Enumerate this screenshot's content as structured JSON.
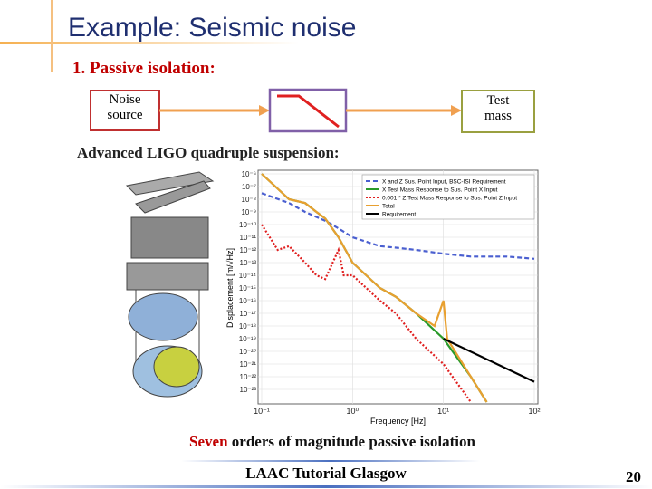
{
  "header": {
    "title": "Example: Seismic noise"
  },
  "section": "1. Passive isolation:",
  "diagram": {
    "nodes": [
      {
        "label": "Noise source"
      },
      {
        "label": "Test mass"
      }
    ]
  },
  "subtitle": "Advanced LIGO quadruple suspension:",
  "plot": {
    "type": "line",
    "x_label": "Frequency [Hz]",
    "y_label": "Displacement [m/√Hz]",
    "log_x": true,
    "log_y": true,
    "xlim": [
      0.1,
      100
    ],
    "ylim": [
      1e-24,
      1e-06
    ],
    "xticks": [
      {
        "value": 0.1,
        "label": "10⁻¹"
      },
      {
        "value": 1,
        "label": "10⁰"
      },
      {
        "value": 10,
        "label": "10¹"
      },
      {
        "value": 100,
        "label": "10²"
      }
    ],
    "yticks": [
      {
        "value": 1e-06,
        "label": "10⁻⁶"
      },
      {
        "value": 1e-07,
        "label": "10⁻⁷"
      },
      {
        "value": 1e-08,
        "label": "10⁻⁸"
      },
      {
        "value": 1e-09,
        "label": "10⁻⁹"
      },
      {
        "value": 1e-10,
        "label": "10⁻¹⁰"
      },
      {
        "value": 1e-11,
        "label": "10⁻¹¹"
      },
      {
        "value": 1e-12,
        "label": "10⁻¹²"
      },
      {
        "value": 1e-13,
        "label": "10⁻¹³"
      },
      {
        "value": 1e-14,
        "label": "10⁻¹⁴"
      },
      {
        "value": 1e-15,
        "label": "10⁻¹⁵"
      },
      {
        "value": 1e-16,
        "label": "10⁻¹⁶"
      },
      {
        "value": 1e-17,
        "label": "10⁻¹⁷"
      },
      {
        "value": 1e-18,
        "label": "10⁻¹⁸"
      },
      {
        "value": 1e-19,
        "label": "10⁻¹⁹"
      },
      {
        "value": 1e-20,
        "label": "10⁻²⁰"
      },
      {
        "value": 1e-21,
        "label": "10⁻²¹"
      },
      {
        "value": 1e-22,
        "label": "10⁻²²"
      },
      {
        "value": 1e-23,
        "label": "10⁻²³"
      }
    ],
    "grid": true,
    "legend": "top-right",
    "series": [
      {
        "name": "X and Z Sus. Point Input, BSC-ISI Requirement",
        "color": "#4a5fd0",
        "dash": "5,3",
        "x": [
          0.1,
          0.2,
          0.3,
          0.5,
          0.7,
          1,
          2,
          3,
          5,
          10,
          20,
          50,
          100
        ],
        "values": [
          3e-08,
          5e-09,
          1e-09,
          2e-10,
          5e-11,
          1e-11,
          2e-12,
          1.5e-12,
          1e-12,
          5e-13,
          3e-13,
          3e-13,
          2e-13
        ]
      },
      {
        "name": "X Test Mass Response to Sus. Point X Input",
        "color": "#2a9a2a",
        "dash": "",
        "x": [
          0.1,
          0.2,
          0.3,
          0.4,
          0.5,
          0.7,
          1,
          2,
          3,
          5,
          10,
          20,
          30
        ],
        "values": [
          1e-06,
          1e-08,
          5e-09,
          1e-09,
          3e-10,
          1e-11,
          1e-13,
          1e-15,
          2e-16,
          1e-17,
          1e-19,
          1e-22,
          1e-24
        ]
      },
      {
        "name": "0.001 * Z Test Mass Response to Sus. Point Z Input",
        "color": "#e02020",
        "dash": "2,2",
        "x": [
          0.1,
          0.15,
          0.2,
          0.3,
          0.4,
          0.5,
          0.7,
          0.8,
          1,
          2,
          3,
          5,
          10,
          20
        ],
        "values": [
          1e-10,
          1e-12,
          2e-12,
          1e-13,
          1e-14,
          5e-15,
          1e-12,
          1e-14,
          1e-14,
          1e-16,
          1e-17,
          1e-19,
          1e-21,
          1e-24
        ]
      },
      {
        "name": "Total",
        "color": "#e8a030",
        "dash": "",
        "x": [
          0.1,
          0.2,
          0.3,
          0.4,
          0.5,
          0.7,
          1,
          2,
          3,
          5,
          8,
          10,
          11,
          20,
          30
        ],
        "values": [
          1e-06,
          1e-08,
          5e-09,
          1e-09,
          3e-10,
          1e-11,
          1e-13,
          1e-15,
          2e-16,
          1e-17,
          1e-18,
          1e-16,
          1e-19,
          1e-22,
          1e-24
        ]
      },
      {
        "name": "Requirement",
        "color": "#000000",
        "dash": "",
        "x": [
          10,
          100
        ],
        "values": [
          1e-19,
          4e-23
        ]
      }
    ]
  },
  "caption": {
    "highlight": "Seven",
    "rest": "orders of magnitude passive isolation"
  },
  "footer": {
    "text": "LAAC Tutorial Glasgow",
    "page": "20"
  }
}
